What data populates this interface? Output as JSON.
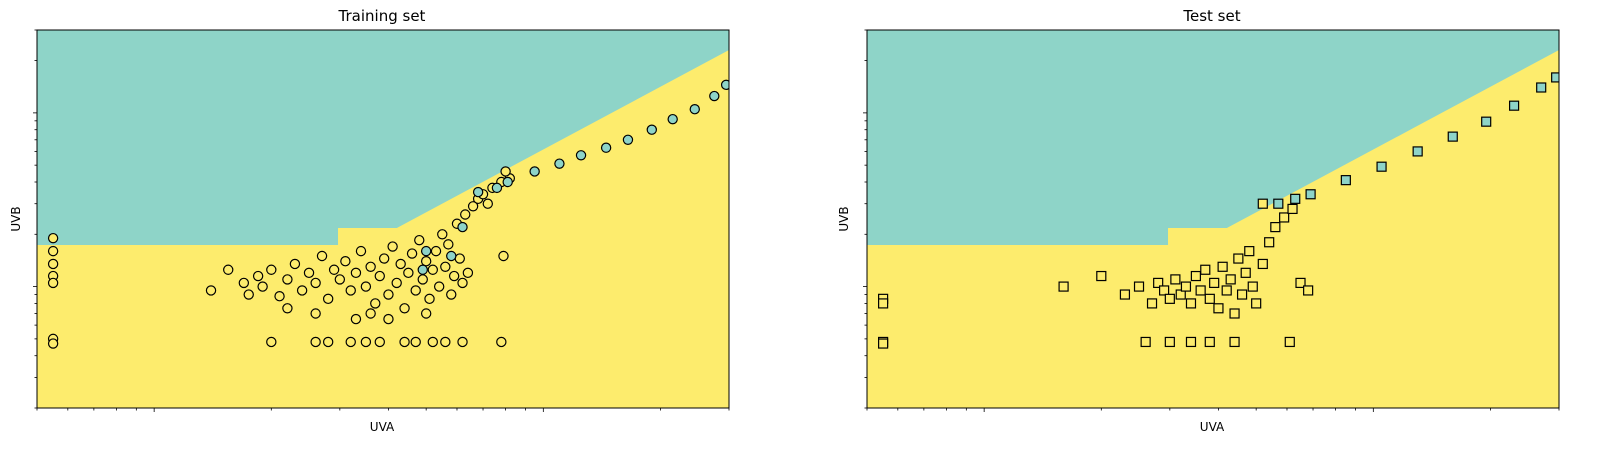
{
  "colors": {
    "teal": "#8ed4c8",
    "yellow": "#fdec6d",
    "edge": "#000000"
  },
  "chart_data": [
    {
      "type": "scatter",
      "title": "Training set",
      "xlabel": "UVA",
      "ylabel": "UVB",
      "xscale": "log",
      "yscale": "log",
      "xlim": [
        0.5,
        30
      ],
      "ylim": [
        0.2,
        30
      ],
      "marker": "circle",
      "background": "decision regions: teal above, yellow below",
      "teal_points": [
        [
          6.8,
          3.5
        ],
        [
          7.6,
          3.7
        ],
        [
          8.1,
          4.0
        ],
        [
          9.5,
          4.6
        ],
        [
          11.0,
          5.1
        ],
        [
          12.5,
          5.7
        ],
        [
          14.5,
          6.3
        ],
        [
          16.5,
          7.0
        ],
        [
          19.0,
          8.0
        ],
        [
          21.5,
          9.2
        ],
        [
          24.5,
          10.5
        ],
        [
          27.5,
          12.5
        ],
        [
          29.5,
          14.5
        ],
        [
          5.8,
          1.5
        ],
        [
          6.2,
          2.2
        ],
        [
          5.0,
          1.6
        ],
        [
          4.9,
          1.25
        ]
      ],
      "yellow_points": [
        [
          0.55,
          1.9
        ],
        [
          0.55,
          1.6
        ],
        [
          0.55,
          1.35
        ],
        [
          0.55,
          1.15
        ],
        [
          0.55,
          1.05
        ],
        [
          0.55,
          0.5
        ],
        [
          0.55,
          0.47
        ],
        [
          2.0,
          0.48
        ],
        [
          2.6,
          0.48
        ],
        [
          2.8,
          0.48
        ],
        [
          3.2,
          0.48
        ],
        [
          3.5,
          0.48
        ],
        [
          3.8,
          0.48
        ],
        [
          4.4,
          0.48
        ],
        [
          4.7,
          0.48
        ],
        [
          5.2,
          0.48
        ],
        [
          5.6,
          0.48
        ],
        [
          6.2,
          0.48
        ],
        [
          7.8,
          0.48
        ],
        [
          1.4,
          0.95
        ],
        [
          1.55,
          1.25
        ],
        [
          1.7,
          1.05
        ],
        [
          1.75,
          0.9
        ],
        [
          1.85,
          1.15
        ],
        [
          1.9,
          1.0
        ],
        [
          2.0,
          1.25
        ],
        [
          2.1,
          0.88
        ],
        [
          2.2,
          1.1
        ],
        [
          2.3,
          1.35
        ],
        [
          2.4,
          0.95
        ],
        [
          2.5,
          1.2
        ],
        [
          2.6,
          1.05
        ],
        [
          2.7,
          1.5
        ],
        [
          2.8,
          0.85
        ],
        [
          2.9,
          1.25
        ],
        [
          3.0,
          1.1
        ],
        [
          3.1,
          1.4
        ],
        [
          3.2,
          0.95
        ],
        [
          3.3,
          1.2
        ],
        [
          3.4,
          1.6
        ],
        [
          3.5,
          1.0
        ],
        [
          3.6,
          1.3
        ],
        [
          3.7,
          0.8
        ],
        [
          3.8,
          1.15
        ],
        [
          3.9,
          1.45
        ],
        [
          4.0,
          0.9
        ],
        [
          4.1,
          1.7
        ],
        [
          4.2,
          1.05
        ],
        [
          4.3,
          1.35
        ],
        [
          4.4,
          0.75
        ],
        [
          4.5,
          1.2
        ],
        [
          4.6,
          1.55
        ],
        [
          4.7,
          0.95
        ],
        [
          4.8,
          1.85
        ],
        [
          4.9,
          1.1
        ],
        [
          5.0,
          1.4
        ],
        [
          5.1,
          0.85
        ],
        [
          5.2,
          1.25
        ],
        [
          5.3,
          1.6
        ],
        [
          5.4,
          1.0
        ],
        [
          5.5,
          2.0
        ],
        [
          5.6,
          1.3
        ],
        [
          5.7,
          1.75
        ],
        [
          5.8,
          0.9
        ],
        [
          5.9,
          1.15
        ],
        [
          6.0,
          2.3
        ],
        [
          6.1,
          1.45
        ],
        [
          6.2,
          1.05
        ],
        [
          6.3,
          2.6
        ],
        [
          6.4,
          1.2
        ],
        [
          6.6,
          2.9
        ],
        [
          6.8,
          3.2
        ],
        [
          7.0,
          3.4
        ],
        [
          7.2,
          3.0
        ],
        [
          7.4,
          3.7
        ],
        [
          7.8,
          4.0
        ],
        [
          8.2,
          4.2
        ],
        [
          8.0,
          4.6
        ],
        [
          7.9,
          1.5
        ],
        [
          3.3,
          0.65
        ],
        [
          3.6,
          0.7
        ],
        [
          2.2,
          0.75
        ],
        [
          2.6,
          0.7
        ],
        [
          4.0,
          0.65
        ],
        [
          5.0,
          0.7
        ]
      ]
    },
    {
      "type": "scatter",
      "title": "Test set",
      "xlabel": "UVA",
      "ylabel": "UVB",
      "xscale": "log",
      "yscale": "log",
      "xlim": [
        0.5,
        30
      ],
      "ylim": [
        0.2,
        30
      ],
      "marker": "square",
      "background": "decision regions: teal above, yellow below",
      "teal_points": [
        [
          5.7,
          3.0
        ],
        [
          6.3,
          3.2
        ],
        [
          6.9,
          3.4
        ],
        [
          8.5,
          4.1
        ],
        [
          10.5,
          4.9
        ],
        [
          13.0,
          6.0
        ],
        [
          16.0,
          7.3
        ],
        [
          19.5,
          8.9
        ],
        [
          23.0,
          11.0
        ],
        [
          27.0,
          14.0
        ],
        [
          29.5,
          16.0
        ]
      ],
      "yellow_points": [
        [
          0.55,
          0.85
        ],
        [
          0.55,
          0.8
        ],
        [
          0.55,
          0.48
        ],
        [
          0.55,
          0.47
        ],
        [
          2.6,
          0.48
        ],
        [
          3.0,
          0.48
        ],
        [
          3.4,
          0.48
        ],
        [
          3.8,
          0.48
        ],
        [
          4.4,
          0.48
        ],
        [
          6.1,
          0.48
        ],
        [
          1.6,
          1.0
        ],
        [
          2.0,
          1.15
        ],
        [
          2.3,
          0.9
        ],
        [
          2.5,
          1.0
        ],
        [
          2.7,
          0.8
        ],
        [
          2.8,
          1.05
        ],
        [
          2.9,
          0.95
        ],
        [
          3.0,
          0.85
        ],
        [
          3.1,
          1.1
        ],
        [
          3.2,
          0.9
        ],
        [
          3.3,
          1.0
        ],
        [
          3.4,
          0.8
        ],
        [
          3.5,
          1.15
        ],
        [
          3.6,
          0.95
        ],
        [
          3.7,
          1.25
        ],
        [
          3.8,
          0.85
        ],
        [
          3.9,
          1.05
        ],
        [
          4.0,
          0.75
        ],
        [
          4.1,
          1.3
        ],
        [
          4.2,
          0.95
        ],
        [
          4.3,
          1.1
        ],
        [
          4.4,
          0.7
        ],
        [
          4.5,
          1.45
        ],
        [
          4.6,
          0.9
        ],
        [
          4.7,
          1.2
        ],
        [
          4.8,
          1.6
        ],
        [
          4.9,
          1.0
        ],
        [
          5.0,
          0.8
        ],
        [
          5.2,
          1.35
        ],
        [
          5.4,
          1.8
        ],
        [
          5.6,
          2.2
        ],
        [
          5.9,
          2.5
        ],
        [
          6.2,
          2.8
        ],
        [
          6.5,
          1.05
        ],
        [
          6.8,
          0.95
        ],
        [
          5.2,
          3.0
        ]
      ]
    }
  ]
}
